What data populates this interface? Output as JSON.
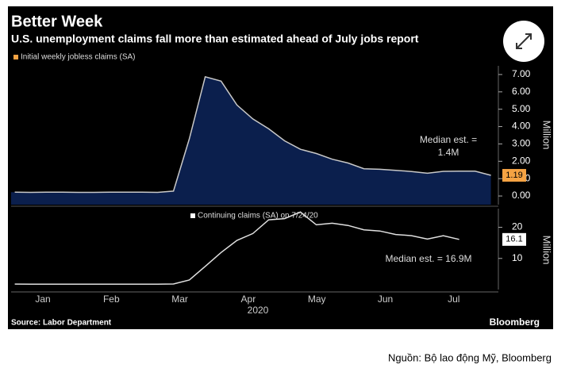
{
  "header": {
    "title": "Better Week",
    "subtitle": "U.S. unemployment claims fall more than estimated ahead of July jobs report"
  },
  "chart_data": [
    {
      "type": "area",
      "series": [
        {
          "name": "Initial weekly jobless claims (SA)",
          "color": "#f5a343",
          "fill": "#0b1f4d",
          "line_color": "#c8c8c8",
          "values": [
            0.22,
            0.21,
            0.22,
            0.22,
            0.21,
            0.21,
            0.22,
            0.22,
            0.22,
            0.21,
            0.28,
            3.3,
            6.87,
            6.62,
            5.24,
            4.44,
            3.87,
            3.18,
            2.69,
            2.45,
            2.12,
            1.9,
            1.57,
            1.54,
            1.48,
            1.41,
            1.31,
            1.42,
            1.43,
            1.43,
            1.19
          ]
        }
      ],
      "ylim": [
        -0.5,
        7.5
      ],
      "yticks": [
        {
          "value": 0,
          "label": "0.00"
        },
        {
          "value": 1,
          "label": "1.00"
        },
        {
          "value": 2,
          "label": "2.00"
        },
        {
          "value": 3,
          "label": "3.00"
        },
        {
          "value": 4,
          "label": "4.00"
        },
        {
          "value": 5,
          "label": "5.00"
        },
        {
          "value": 6,
          "label": "6.00"
        },
        {
          "value": 7,
          "label": "7.00"
        }
      ],
      "y_label": "Million",
      "annotation": [
        "Median est. =",
        "1.4M"
      ]
    },
    {
      "type": "line",
      "series": [
        {
          "name": "Continuing claims (SA) on 7/24/20",
          "color": "#ffffff",
          "line_color": "#e0e0e0",
          "values": [
            1.75,
            1.73,
            1.73,
            1.72,
            1.7,
            1.7,
            1.72,
            1.7,
            1.72,
            1.7,
            1.78,
            3.06,
            7.45,
            11.9,
            15.8,
            18.0,
            22.4,
            22.8,
            24.9,
            20.8,
            21.3,
            20.6,
            19.2,
            18.8,
            17.7,
            17.3,
            16.2,
            17.3,
            16.1
          ]
        }
      ],
      "ylim": [
        0,
        26
      ],
      "yticks": [
        10,
        20
      ],
      "y_label": "Million",
      "annotation": [
        "Median est. = 16.9M"
      ],
      "months": [
        "Jan",
        "Feb",
        "Mar",
        "Apr",
        "May",
        "Jun",
        "Jul"
      ],
      "x_label": "2020"
    }
  ],
  "source": "Source: Labor Department",
  "brand": "Bloomberg",
  "caption": "Nguồn: Bộ lao động Mỹ, Bloomberg"
}
